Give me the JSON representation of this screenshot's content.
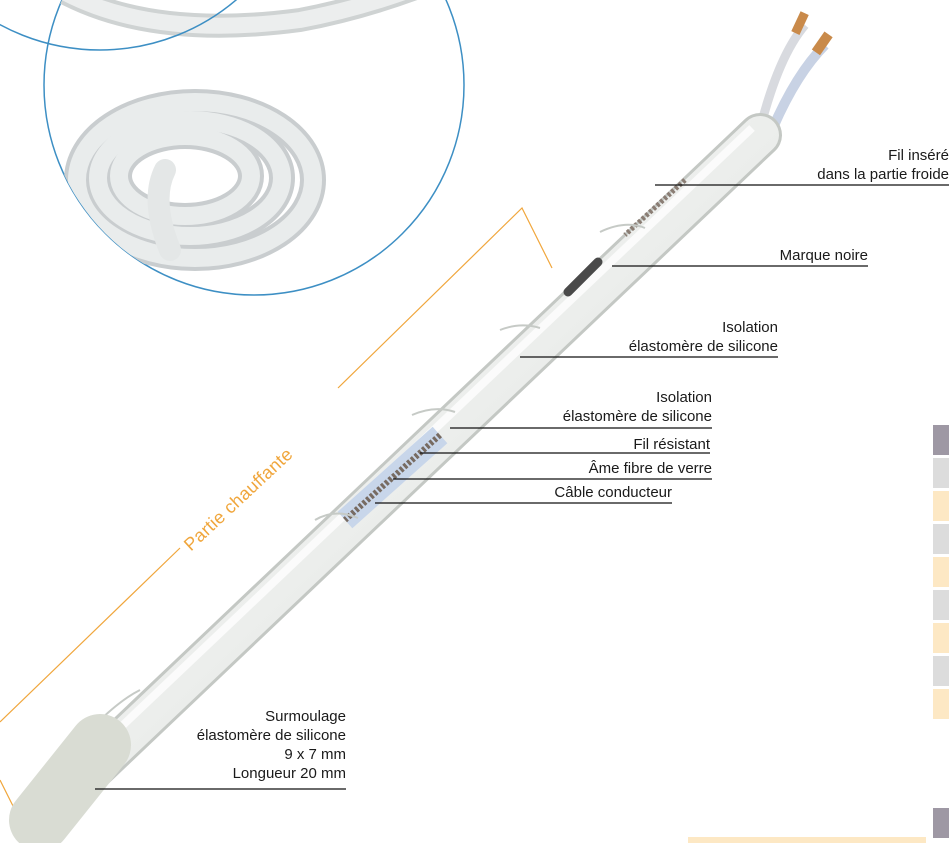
{
  "labels": {
    "fil_insere": [
      "Fil inséré",
      "dans la partie froide"
    ],
    "marque_noire": "Marque noire",
    "isolation_1": [
      "Isolation",
      "élastomère de silicone"
    ],
    "isolation_2": [
      "Isolation",
      "élastomère de silicone"
    ],
    "fil_resistant": "Fil résistant",
    "ame_fibre": "Âme fibre de verre",
    "cable_conducteur": "Câble conducteur",
    "surmoulage": [
      "Surmoulage",
      "élastomère de silicone",
      "9 x 7 mm",
      "Longueur 20 mm"
    ],
    "partie_chauffante": "Partie chauffante"
  },
  "colors": {
    "accent_orange": "#f0a63c",
    "circle_blue": "#3d8fc4",
    "cable_white": "#eef0ee",
    "swatch_grey": "#dcdcdc",
    "swatch_dark": "#9e98a4",
    "swatch_cream": "#fde8c4"
  },
  "swatches": [
    "dark",
    "grey",
    "cream",
    "grey",
    "cream",
    "grey",
    "cream",
    "grey",
    "cream"
  ]
}
